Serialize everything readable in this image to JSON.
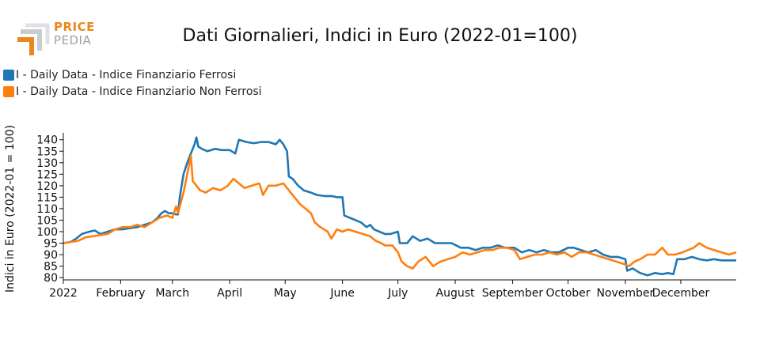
{
  "logo": {
    "word1": "PRICE",
    "word2": "PEDIA",
    "icon": "pricepedia-bracket-icon"
  },
  "chart_data": {
    "type": "line",
    "title": "Dati Giornalieri, Indici in Euro (2022-01=100)",
    "ylabel": "Indici in Euro (2022-01 = 100)",
    "xlabel": "",
    "ylim": [
      79,
      143
    ],
    "yticks": [
      80,
      85,
      90,
      95,
      100,
      105,
      110,
      115,
      120,
      125,
      130,
      135,
      140
    ],
    "xlim": [
      "2022-01-01",
      "2022-12-31"
    ],
    "xticks": [
      {
        "label": "2022",
        "date": "2022-01-01"
      },
      {
        "label": "February",
        "date": "2022-02-01"
      },
      {
        "label": "March",
        "date": "2022-03-01"
      },
      {
        "label": "April",
        "date": "2022-04-01"
      },
      {
        "label": "May",
        "date": "2022-05-01"
      },
      {
        "label": "June",
        "date": "2022-06-01"
      },
      {
        "label": "July",
        "date": "2022-07-01"
      },
      {
        "label": "August",
        "date": "2022-08-01"
      },
      {
        "label": "September",
        "date": "2022-09-01"
      },
      {
        "label": "October",
        "date": "2022-10-01"
      },
      {
        "label": "November",
        "date": "2022-11-01"
      },
      {
        "label": "December",
        "date": "2022-12-01"
      }
    ],
    "grid": false,
    "legend_position": "top-left",
    "series": [
      {
        "name": "I - Daily Data - Indice Finanziario Ferrosi",
        "color": "#1f77b4",
        "points": [
          [
            "2022-01-01",
            95
          ],
          [
            "2022-01-05",
            95.5
          ],
          [
            "2022-01-08",
            97
          ],
          [
            "2022-01-11",
            99
          ],
          [
            "2022-01-15",
            100
          ],
          [
            "2022-01-18",
            100.5
          ],
          [
            "2022-01-21",
            99
          ],
          [
            "2022-01-25",
            100
          ],
          [
            "2022-01-29",
            101
          ],
          [
            "2022-02-02",
            101
          ],
          [
            "2022-02-06",
            101.5
          ],
          [
            "2022-02-10",
            102
          ],
          [
            "2022-02-14",
            103
          ],
          [
            "2022-02-18",
            104
          ],
          [
            "2022-02-21",
            106
          ],
          [
            "2022-02-23",
            108
          ],
          [
            "2022-02-25",
            109
          ],
          [
            "2022-02-27",
            108
          ],
          [
            "2022-03-01",
            108
          ],
          [
            "2022-03-03",
            107.5
          ],
          [
            "2022-03-04",
            107.5
          ],
          [
            "2022-03-05",
            115
          ],
          [
            "2022-03-07",
            125
          ],
          [
            "2022-03-09",
            130
          ],
          [
            "2022-03-11",
            134
          ],
          [
            "2022-03-13",
            138
          ],
          [
            "2022-03-14",
            141
          ],
          [
            "2022-03-15",
            137
          ],
          [
            "2022-03-17",
            136
          ],
          [
            "2022-03-20",
            135
          ],
          [
            "2022-03-24",
            136
          ],
          [
            "2022-03-28",
            135.5
          ],
          [
            "2022-04-01",
            135.5
          ],
          [
            "2022-04-04",
            134
          ],
          [
            "2022-04-06",
            140
          ],
          [
            "2022-04-10",
            139
          ],
          [
            "2022-04-14",
            138.5
          ],
          [
            "2022-04-18",
            139
          ],
          [
            "2022-04-22",
            139
          ],
          [
            "2022-04-26",
            138
          ],
          [
            "2022-04-28",
            140
          ],
          [
            "2022-04-30",
            138
          ],
          [
            "2022-05-02",
            135
          ],
          [
            "2022-05-03",
            124
          ],
          [
            "2022-05-05",
            123
          ],
          [
            "2022-05-08",
            120
          ],
          [
            "2022-05-11",
            118
          ],
          [
            "2022-05-15",
            117
          ],
          [
            "2022-05-18",
            116
          ],
          [
            "2022-05-22",
            115.5
          ],
          [
            "2022-05-26",
            115.5
          ],
          [
            "2022-05-29",
            115
          ],
          [
            "2022-06-01",
            115
          ],
          [
            "2022-06-02",
            107
          ],
          [
            "2022-06-05",
            106
          ],
          [
            "2022-06-08",
            105
          ],
          [
            "2022-06-11",
            104
          ],
          [
            "2022-06-14",
            102
          ],
          [
            "2022-06-16",
            103
          ],
          [
            "2022-06-18",
            101
          ],
          [
            "2022-06-21",
            100
          ],
          [
            "2022-06-24",
            99
          ],
          [
            "2022-06-27",
            99
          ],
          [
            "2022-07-01",
            100
          ],
          [
            "2022-07-02",
            95
          ],
          [
            "2022-07-06",
            95
          ],
          [
            "2022-07-09",
            98
          ],
          [
            "2022-07-13",
            96
          ],
          [
            "2022-07-17",
            97
          ],
          [
            "2022-07-21",
            95
          ],
          [
            "2022-07-25",
            95
          ],
          [
            "2022-07-30",
            95
          ],
          [
            "2022-08-04",
            93
          ],
          [
            "2022-08-08",
            93
          ],
          [
            "2022-08-12",
            92
          ],
          [
            "2022-08-16",
            93
          ],
          [
            "2022-08-20",
            93
          ],
          [
            "2022-08-24",
            94
          ],
          [
            "2022-08-28",
            93
          ],
          [
            "2022-09-02",
            93
          ],
          [
            "2022-09-06",
            91
          ],
          [
            "2022-09-10",
            92
          ],
          [
            "2022-09-14",
            91
          ],
          [
            "2022-09-18",
            92
          ],
          [
            "2022-09-22",
            91
          ],
          [
            "2022-09-26",
            91
          ],
          [
            "2022-10-01",
            93
          ],
          [
            "2022-10-04",
            93
          ],
          [
            "2022-10-08",
            92
          ],
          [
            "2022-10-12",
            91
          ],
          [
            "2022-10-16",
            92
          ],
          [
            "2022-10-20",
            90
          ],
          [
            "2022-10-24",
            89
          ],
          [
            "2022-10-28",
            89
          ],
          [
            "2022-11-01",
            88
          ],
          [
            "2022-11-02",
            83
          ],
          [
            "2022-11-05",
            84
          ],
          [
            "2022-11-09",
            82
          ],
          [
            "2022-11-13",
            81
          ],
          [
            "2022-11-17",
            82
          ],
          [
            "2022-11-21",
            81.5
          ],
          [
            "2022-11-24",
            82
          ],
          [
            "2022-11-27",
            81.5
          ],
          [
            "2022-11-29",
            88
          ],
          [
            "2022-12-03",
            88
          ],
          [
            "2022-12-07",
            89
          ],
          [
            "2022-12-11",
            88
          ],
          [
            "2022-12-15",
            87.5
          ],
          [
            "2022-12-19",
            88
          ],
          [
            "2022-12-23",
            87.5
          ],
          [
            "2022-12-27",
            87.5
          ],
          [
            "2022-12-31",
            87.5
          ]
        ]
      },
      {
        "name": "I - Daily Data - Indice Finanziario Non Ferrosi",
        "color": "#ff7f0e",
        "points": [
          [
            "2022-01-01",
            95
          ],
          [
            "2022-01-05",
            95.5
          ],
          [
            "2022-01-09",
            96
          ],
          [
            "2022-01-13",
            97.5
          ],
          [
            "2022-01-17",
            98
          ],
          [
            "2022-01-21",
            98.5
          ],
          [
            "2022-01-25",
            99
          ],
          [
            "2022-01-29",
            101
          ],
          [
            "2022-02-02",
            102
          ],
          [
            "2022-02-06",
            102
          ],
          [
            "2022-02-10",
            103
          ],
          [
            "2022-02-14",
            102
          ],
          [
            "2022-02-18",
            104
          ],
          [
            "2022-02-22",
            106
          ],
          [
            "2022-02-26",
            107
          ],
          [
            "2022-03-01",
            106
          ],
          [
            "2022-03-03",
            111
          ],
          [
            "2022-03-04",
            108
          ],
          [
            "2022-03-07",
            117
          ],
          [
            "2022-03-09",
            125
          ],
          [
            "2022-03-11",
            133
          ],
          [
            "2022-03-12",
            122
          ],
          [
            "2022-03-14",
            120
          ],
          [
            "2022-03-16",
            118
          ],
          [
            "2022-03-19",
            117
          ],
          [
            "2022-03-23",
            119
          ],
          [
            "2022-03-27",
            118
          ],
          [
            "2022-03-31",
            120
          ],
          [
            "2022-04-03",
            123
          ],
          [
            "2022-04-06",
            121
          ],
          [
            "2022-04-09",
            119
          ],
          [
            "2022-04-13",
            120
          ],
          [
            "2022-04-17",
            121
          ],
          [
            "2022-04-19",
            116
          ],
          [
            "2022-04-22",
            120
          ],
          [
            "2022-04-26",
            120
          ],
          [
            "2022-04-30",
            121
          ],
          [
            "2022-05-03",
            118
          ],
          [
            "2022-05-06",
            115
          ],
          [
            "2022-05-09",
            112
          ],
          [
            "2022-05-12",
            110
          ],
          [
            "2022-05-15",
            108
          ],
          [
            "2022-05-17",
            104
          ],
          [
            "2022-05-20",
            102
          ],
          [
            "2022-05-24",
            100
          ],
          [
            "2022-05-26",
            97
          ],
          [
            "2022-05-29",
            101
          ],
          [
            "2022-06-01",
            100
          ],
          [
            "2022-06-04",
            101
          ],
          [
            "2022-06-08",
            100
          ],
          [
            "2022-06-12",
            99
          ],
          [
            "2022-06-16",
            98
          ],
          [
            "2022-06-19",
            96
          ],
          [
            "2022-06-22",
            95
          ],
          [
            "2022-06-24",
            94
          ],
          [
            "2022-06-28",
            94
          ],
          [
            "2022-07-01",
            91
          ],
          [
            "2022-07-03",
            87
          ],
          [
            "2022-07-06",
            85
          ],
          [
            "2022-07-09",
            84
          ],
          [
            "2022-07-12",
            87
          ],
          [
            "2022-07-16",
            89
          ],
          [
            "2022-07-20",
            85
          ],
          [
            "2022-07-24",
            87
          ],
          [
            "2022-07-28",
            88
          ],
          [
            "2022-08-01",
            89
          ],
          [
            "2022-08-05",
            91
          ],
          [
            "2022-08-09",
            90
          ],
          [
            "2022-08-13",
            91
          ],
          [
            "2022-08-17",
            92
          ],
          [
            "2022-08-21",
            92
          ],
          [
            "2022-08-25",
            93
          ],
          [
            "2022-08-29",
            93
          ],
          [
            "2022-09-02",
            92
          ],
          [
            "2022-09-05",
            88
          ],
          [
            "2022-09-09",
            89
          ],
          [
            "2022-09-13",
            90
          ],
          [
            "2022-09-17",
            90
          ],
          [
            "2022-09-21",
            91
          ],
          [
            "2022-09-25",
            90
          ],
          [
            "2022-09-29",
            91
          ],
          [
            "2022-10-03",
            89
          ],
          [
            "2022-10-07",
            91
          ],
          [
            "2022-10-11",
            91
          ],
          [
            "2022-10-15",
            90
          ],
          [
            "2022-10-19",
            89
          ],
          [
            "2022-10-23",
            88
          ],
          [
            "2022-10-27",
            87
          ],
          [
            "2022-10-31",
            86
          ],
          [
            "2022-11-03",
            85
          ],
          [
            "2022-11-06",
            87
          ],
          [
            "2022-11-09",
            88
          ],
          [
            "2022-11-13",
            90
          ],
          [
            "2022-11-17",
            90
          ],
          [
            "2022-11-21",
            93
          ],
          [
            "2022-11-24",
            90
          ],
          [
            "2022-11-28",
            90
          ],
          [
            "2022-12-02",
            91
          ],
          [
            "2022-12-05",
            92
          ],
          [
            "2022-12-08",
            93
          ],
          [
            "2022-12-11",
            95
          ],
          [
            "2022-12-15",
            93
          ],
          [
            "2022-12-19",
            92
          ],
          [
            "2022-12-23",
            91
          ],
          [
            "2022-12-27",
            90
          ],
          [
            "2022-12-31",
            91
          ]
        ]
      }
    ]
  }
}
